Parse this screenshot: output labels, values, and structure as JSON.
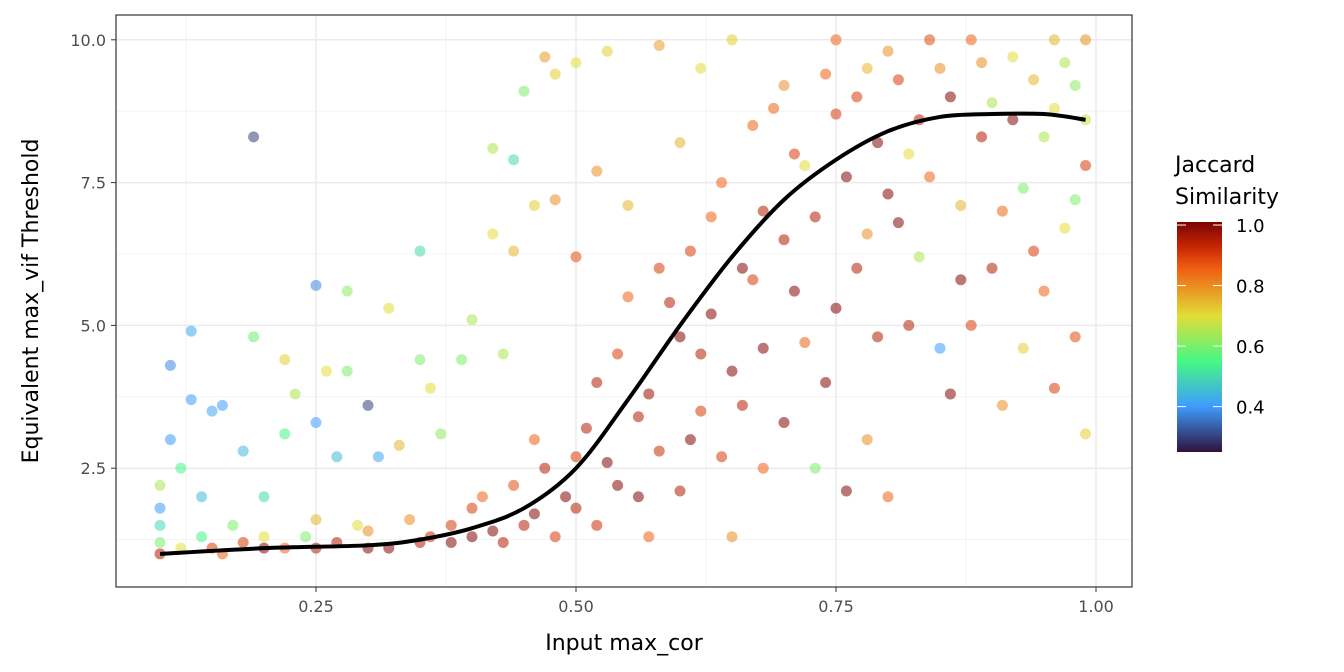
{
  "chart_data": {
    "type": "scatter",
    "title": "",
    "xlabel": "Input max_cor",
    "ylabel": "Equivalent max_vif Threshold",
    "xlim": [
      0.056,
      1.033
    ],
    "ylim": [
      0.5,
      10.45
    ],
    "xticks": [
      0.25,
      0.5,
      0.75,
      1.0
    ],
    "xtick_labels": [
      "0.25",
      "0.50",
      "0.75",
      "1.00"
    ],
    "yticks": [
      2.5,
      5.0,
      7.5,
      10.0
    ],
    "ytick_labels": [
      "2.5",
      "5.0",
      "7.5",
      "10.0"
    ],
    "grid": true,
    "legend": {
      "title_lines": [
        "Jaccard",
        "Similarity"
      ],
      "placement": "right",
      "range": [
        0.25,
        1.01
      ],
      "ticks": [
        1.0,
        0.8,
        0.6,
        0.4
      ],
      "tick_labels": [
        "1.0",
        "0.8",
        "0.6",
        "0.4"
      ],
      "colormap_stops": [
        {
          "v": 0.25,
          "color": "#30123b"
        },
        {
          "v": 0.4,
          "color": "#3e9bfe"
        },
        {
          "v": 0.55,
          "color": "#46f884"
        },
        {
          "v": 0.7,
          "color": "#e1dd37"
        },
        {
          "v": 0.86,
          "color": "#f05b12"
        },
        {
          "v": 0.93,
          "color": "#c42503"
        },
        {
          "v": 1.01,
          "color": "#7a0403"
        }
      ]
    },
    "points_columns": [
      "max_cor",
      "max_vif",
      "jaccard"
    ],
    "points": [
      [
        0.1,
        1.0,
        0.95
      ],
      [
        0.1,
        1.2,
        0.6
      ],
      [
        0.1,
        1.5,
        0.5
      ],
      [
        0.1,
        1.8,
        0.4
      ],
      [
        0.1,
        2.2,
        0.65
      ],
      [
        0.11,
        4.3,
        0.38
      ],
      [
        0.11,
        3.0,
        0.4
      ],
      [
        0.12,
        2.5,
        0.55
      ],
      [
        0.13,
        4.9,
        0.42
      ],
      [
        0.13,
        3.7,
        0.4
      ],
      [
        0.14,
        2.0,
        0.45
      ],
      [
        0.15,
        1.1,
        0.9
      ],
      [
        0.15,
        3.5,
        0.42
      ],
      [
        0.16,
        3.6,
        0.4
      ],
      [
        0.17,
        1.5,
        0.6
      ],
      [
        0.18,
        2.8,
        0.45
      ],
      [
        0.19,
        8.3,
        0.3
      ],
      [
        0.19,
        4.8,
        0.58
      ],
      [
        0.2,
        1.1,
        1.0
      ],
      [
        0.2,
        1.3,
        0.7
      ],
      [
        0.2,
        2.0,
        0.5
      ],
      [
        0.22,
        4.4,
        0.72
      ],
      [
        0.22,
        3.1,
        0.55
      ],
      [
        0.23,
        3.8,
        0.65
      ],
      [
        0.25,
        5.7,
        0.38
      ],
      [
        0.25,
        3.3,
        0.4
      ],
      [
        0.25,
        1.1,
        0.95
      ],
      [
        0.25,
        1.6,
        0.75
      ],
      [
        0.26,
        4.2,
        0.7
      ],
      [
        0.27,
        2.7,
        0.45
      ],
      [
        0.28,
        5.6,
        0.62
      ],
      [
        0.28,
        4.2,
        0.6
      ],
      [
        0.3,
        3.6,
        0.3
      ],
      [
        0.3,
        1.1,
        1.0
      ],
      [
        0.3,
        1.4,
        0.8
      ],
      [
        0.31,
        2.7,
        0.42
      ],
      [
        0.32,
        5.3,
        0.7
      ],
      [
        0.33,
        2.9,
        0.75
      ],
      [
        0.35,
        6.3,
        0.5
      ],
      [
        0.35,
        4.4,
        0.6
      ],
      [
        0.35,
        1.2,
        0.95
      ],
      [
        0.36,
        3.9,
        0.7
      ],
      [
        0.37,
        3.1,
        0.62
      ],
      [
        0.38,
        1.5,
        0.9
      ],
      [
        0.39,
        4.4,
        0.6
      ],
      [
        0.4,
        5.1,
        0.65
      ],
      [
        0.4,
        1.3,
        1.0
      ],
      [
        0.41,
        2.0,
        0.85
      ],
      [
        0.42,
        8.1,
        0.65
      ],
      [
        0.42,
        6.6,
        0.7
      ],
      [
        0.43,
        4.5,
        0.65
      ],
      [
        0.44,
        7.9,
        0.5
      ],
      [
        0.44,
        6.3,
        0.75
      ],
      [
        0.45,
        9.1,
        0.6
      ],
      [
        0.45,
        1.5,
        0.95
      ],
      [
        0.46,
        7.1,
        0.72
      ],
      [
        0.46,
        3.0,
        0.85
      ],
      [
        0.47,
        9.7,
        0.78
      ],
      [
        0.48,
        7.2,
        0.8
      ],
      [
        0.48,
        9.4,
        0.72
      ],
      [
        0.5,
        9.6,
        0.7
      ],
      [
        0.5,
        1.8,
        0.95
      ],
      [
        0.5,
        2.7,
        0.9
      ],
      [
        0.5,
        6.2,
        0.88
      ],
      [
        0.52,
        7.7,
        0.8
      ],
      [
        0.52,
        4.0,
        0.95
      ],
      [
        0.53,
        9.8,
        0.72
      ],
      [
        0.54,
        2.2,
        1.0
      ],
      [
        0.55,
        5.5,
        0.85
      ],
      [
        0.55,
        7.1,
        0.75
      ],
      [
        0.56,
        3.4,
        0.95
      ],
      [
        0.57,
        1.3,
        0.85
      ],
      [
        0.58,
        9.9,
        0.78
      ],
      [
        0.58,
        6.0,
        0.9
      ],
      [
        0.6,
        4.8,
        1.0
      ],
      [
        0.6,
        8.2,
        0.75
      ],
      [
        0.6,
        2.1,
        0.95
      ],
      [
        0.62,
        9.5,
        0.7
      ],
      [
        0.62,
        3.5,
        0.9
      ],
      [
        0.63,
        6.9,
        0.85
      ],
      [
        0.65,
        10.0,
        0.72
      ],
      [
        0.65,
        4.2,
        1.0
      ],
      [
        0.65,
        1.3,
        0.8
      ],
      [
        0.67,
        8.5,
        0.85
      ],
      [
        0.67,
        5.8,
        0.9
      ],
      [
        0.68,
        2.5,
        0.85
      ],
      [
        0.7,
        9.2,
        0.8
      ],
      [
        0.7,
        6.5,
        0.95
      ],
      [
        0.7,
        3.3,
        1.0
      ],
      [
        0.72,
        7.8,
        0.7
      ],
      [
        0.72,
        4.7,
        0.85
      ],
      [
        0.73,
        2.5,
        0.6
      ],
      [
        0.75,
        10.0,
        0.85
      ],
      [
        0.75,
        8.7,
        0.9
      ],
      [
        0.75,
        5.3,
        1.0
      ],
      [
        0.76,
        2.1,
        1.0
      ],
      [
        0.78,
        9.5,
        0.75
      ],
      [
        0.78,
        3.0,
        0.8
      ],
      [
        0.78,
        6.6,
        0.8
      ],
      [
        0.8,
        7.3,
        1.0
      ],
      [
        0.8,
        2.0,
        0.85
      ],
      [
        0.8,
        9.8,
        0.8
      ],
      [
        0.82,
        8.0,
        0.7
      ],
      [
        0.82,
        5.0,
        0.95
      ],
      [
        0.83,
        6.2,
        0.65
      ],
      [
        0.85,
        4.6,
        0.4
      ],
      [
        0.85,
        9.5,
        0.8
      ],
      [
        0.86,
        3.8,
        1.0
      ],
      [
        0.87,
        7.1,
        0.75
      ],
      [
        0.88,
        5.0,
        0.9
      ],
      [
        0.88,
        10.0,
        0.85
      ],
      [
        0.9,
        8.9,
        0.65
      ],
      [
        0.9,
        6.0,
        0.95
      ],
      [
        0.91,
        3.6,
        0.8
      ],
      [
        0.92,
        9.7,
        0.7
      ],
      [
        0.93,
        4.6,
        0.72
      ],
      [
        0.93,
        7.4,
        0.6
      ],
      [
        0.95,
        8.3,
        0.65
      ],
      [
        0.95,
        5.6,
        0.85
      ],
      [
        0.96,
        10.0,
        0.75
      ],
      [
        0.96,
        3.9,
        0.9
      ],
      [
        0.97,
        6.7,
        0.7
      ],
      [
        0.98,
        9.2,
        0.62
      ],
      [
        0.98,
        4.8,
        0.88
      ],
      [
        0.99,
        3.1,
        0.72
      ],
      [
        0.99,
        7.8,
        0.9
      ],
      [
        0.99,
        10.0,
        0.8
      ],
      [
        0.12,
        1.1,
        0.7
      ],
      [
        0.14,
        1.3,
        0.55
      ],
      [
        0.16,
        1.0,
        0.85
      ],
      [
        0.18,
        1.2,
        0.9
      ],
      [
        0.22,
        1.1,
        0.85
      ],
      [
        0.24,
        1.3,
        0.6
      ],
      [
        0.27,
        1.2,
        0.95
      ],
      [
        0.29,
        1.5,
        0.7
      ],
      [
        0.32,
        1.1,
        1.0
      ],
      [
        0.34,
        1.6,
        0.8
      ],
      [
        0.36,
        1.3,
        0.92
      ],
      [
        0.38,
        1.2,
        1.0
      ],
      [
        0.4,
        1.8,
        0.9
      ],
      [
        0.42,
        1.4,
        1.0
      ],
      [
        0.43,
        1.2,
        0.95
      ],
      [
        0.44,
        2.2,
        0.88
      ],
      [
        0.46,
        1.7,
        1.0
      ],
      [
        0.47,
        2.5,
        0.95
      ],
      [
        0.48,
        1.3,
        0.9
      ],
      [
        0.49,
        2.0,
        1.0
      ],
      [
        0.51,
        3.2,
        0.95
      ],
      [
        0.52,
        1.5,
        0.92
      ],
      [
        0.53,
        2.6,
        1.0
      ],
      [
        0.54,
        4.5,
        0.9
      ],
      [
        0.56,
        2.0,
        1.0
      ],
      [
        0.57,
        3.8,
        0.98
      ],
      [
        0.58,
        2.8,
        0.92
      ],
      [
        0.59,
        5.4,
        0.95
      ],
      [
        0.61,
        3.0,
        1.0
      ],
      [
        0.61,
        6.3,
        0.9
      ],
      [
        0.62,
        4.5,
        0.95
      ],
      [
        0.63,
        5.2,
        1.0
      ],
      [
        0.64,
        2.7,
        0.9
      ],
      [
        0.64,
        7.5,
        0.85
      ],
      [
        0.66,
        6.0,
        1.0
      ],
      [
        0.66,
        3.6,
        0.95
      ],
      [
        0.68,
        7.0,
        0.95
      ],
      [
        0.68,
        4.6,
        1.0
      ],
      [
        0.69,
        8.8,
        0.85
      ],
      [
        0.71,
        5.6,
        1.0
      ],
      [
        0.71,
        8.0,
        0.9
      ],
      [
        0.73,
        6.9,
        0.95
      ],
      [
        0.74,
        9.4,
        0.85
      ],
      [
        0.74,
        4.0,
        1.0
      ],
      [
        0.76,
        7.6,
        1.0
      ],
      [
        0.77,
        6.0,
        0.95
      ],
      [
        0.77,
        9.0,
        0.9
      ],
      [
        0.79,
        8.2,
        1.0
      ],
      [
        0.79,
        4.8,
        0.95
      ],
      [
        0.81,
        9.3,
        0.9
      ],
      [
        0.81,
        6.8,
        1.0
      ],
      [
        0.83,
        8.6,
        0.95
      ],
      [
        0.84,
        7.6,
        0.85
      ],
      [
        0.84,
        10.0,
        0.88
      ],
      [
        0.86,
        9.0,
        1.0
      ],
      [
        0.87,
        5.8,
        1.0
      ],
      [
        0.89,
        8.3,
        0.95
      ],
      [
        0.89,
        9.6,
        0.8
      ],
      [
        0.91,
        7.0,
        0.85
      ],
      [
        0.92,
        8.6,
        1.0
      ],
      [
        0.94,
        9.3,
        0.75
      ],
      [
        0.94,
        6.3,
        0.9
      ],
      [
        0.96,
        8.8,
        0.7
      ],
      [
        0.97,
        9.6,
        0.65
      ],
      [
        0.98,
        7.2,
        0.6
      ],
      [
        0.99,
        8.6,
        0.68
      ]
    ],
    "smooth_line": {
      "x": [
        0.1,
        0.2,
        0.3,
        0.35,
        0.4,
        0.45,
        0.5,
        0.55,
        0.6,
        0.65,
        0.7,
        0.75,
        0.8,
        0.85,
        0.9,
        0.95,
        0.99
      ],
      "y": [
        1.0,
        1.1,
        1.15,
        1.25,
        1.45,
        1.8,
        2.5,
        3.7,
        5.0,
        6.2,
        7.2,
        7.9,
        8.4,
        8.65,
        8.7,
        8.7,
        8.6
      ],
      "color": "#000000"
    }
  }
}
